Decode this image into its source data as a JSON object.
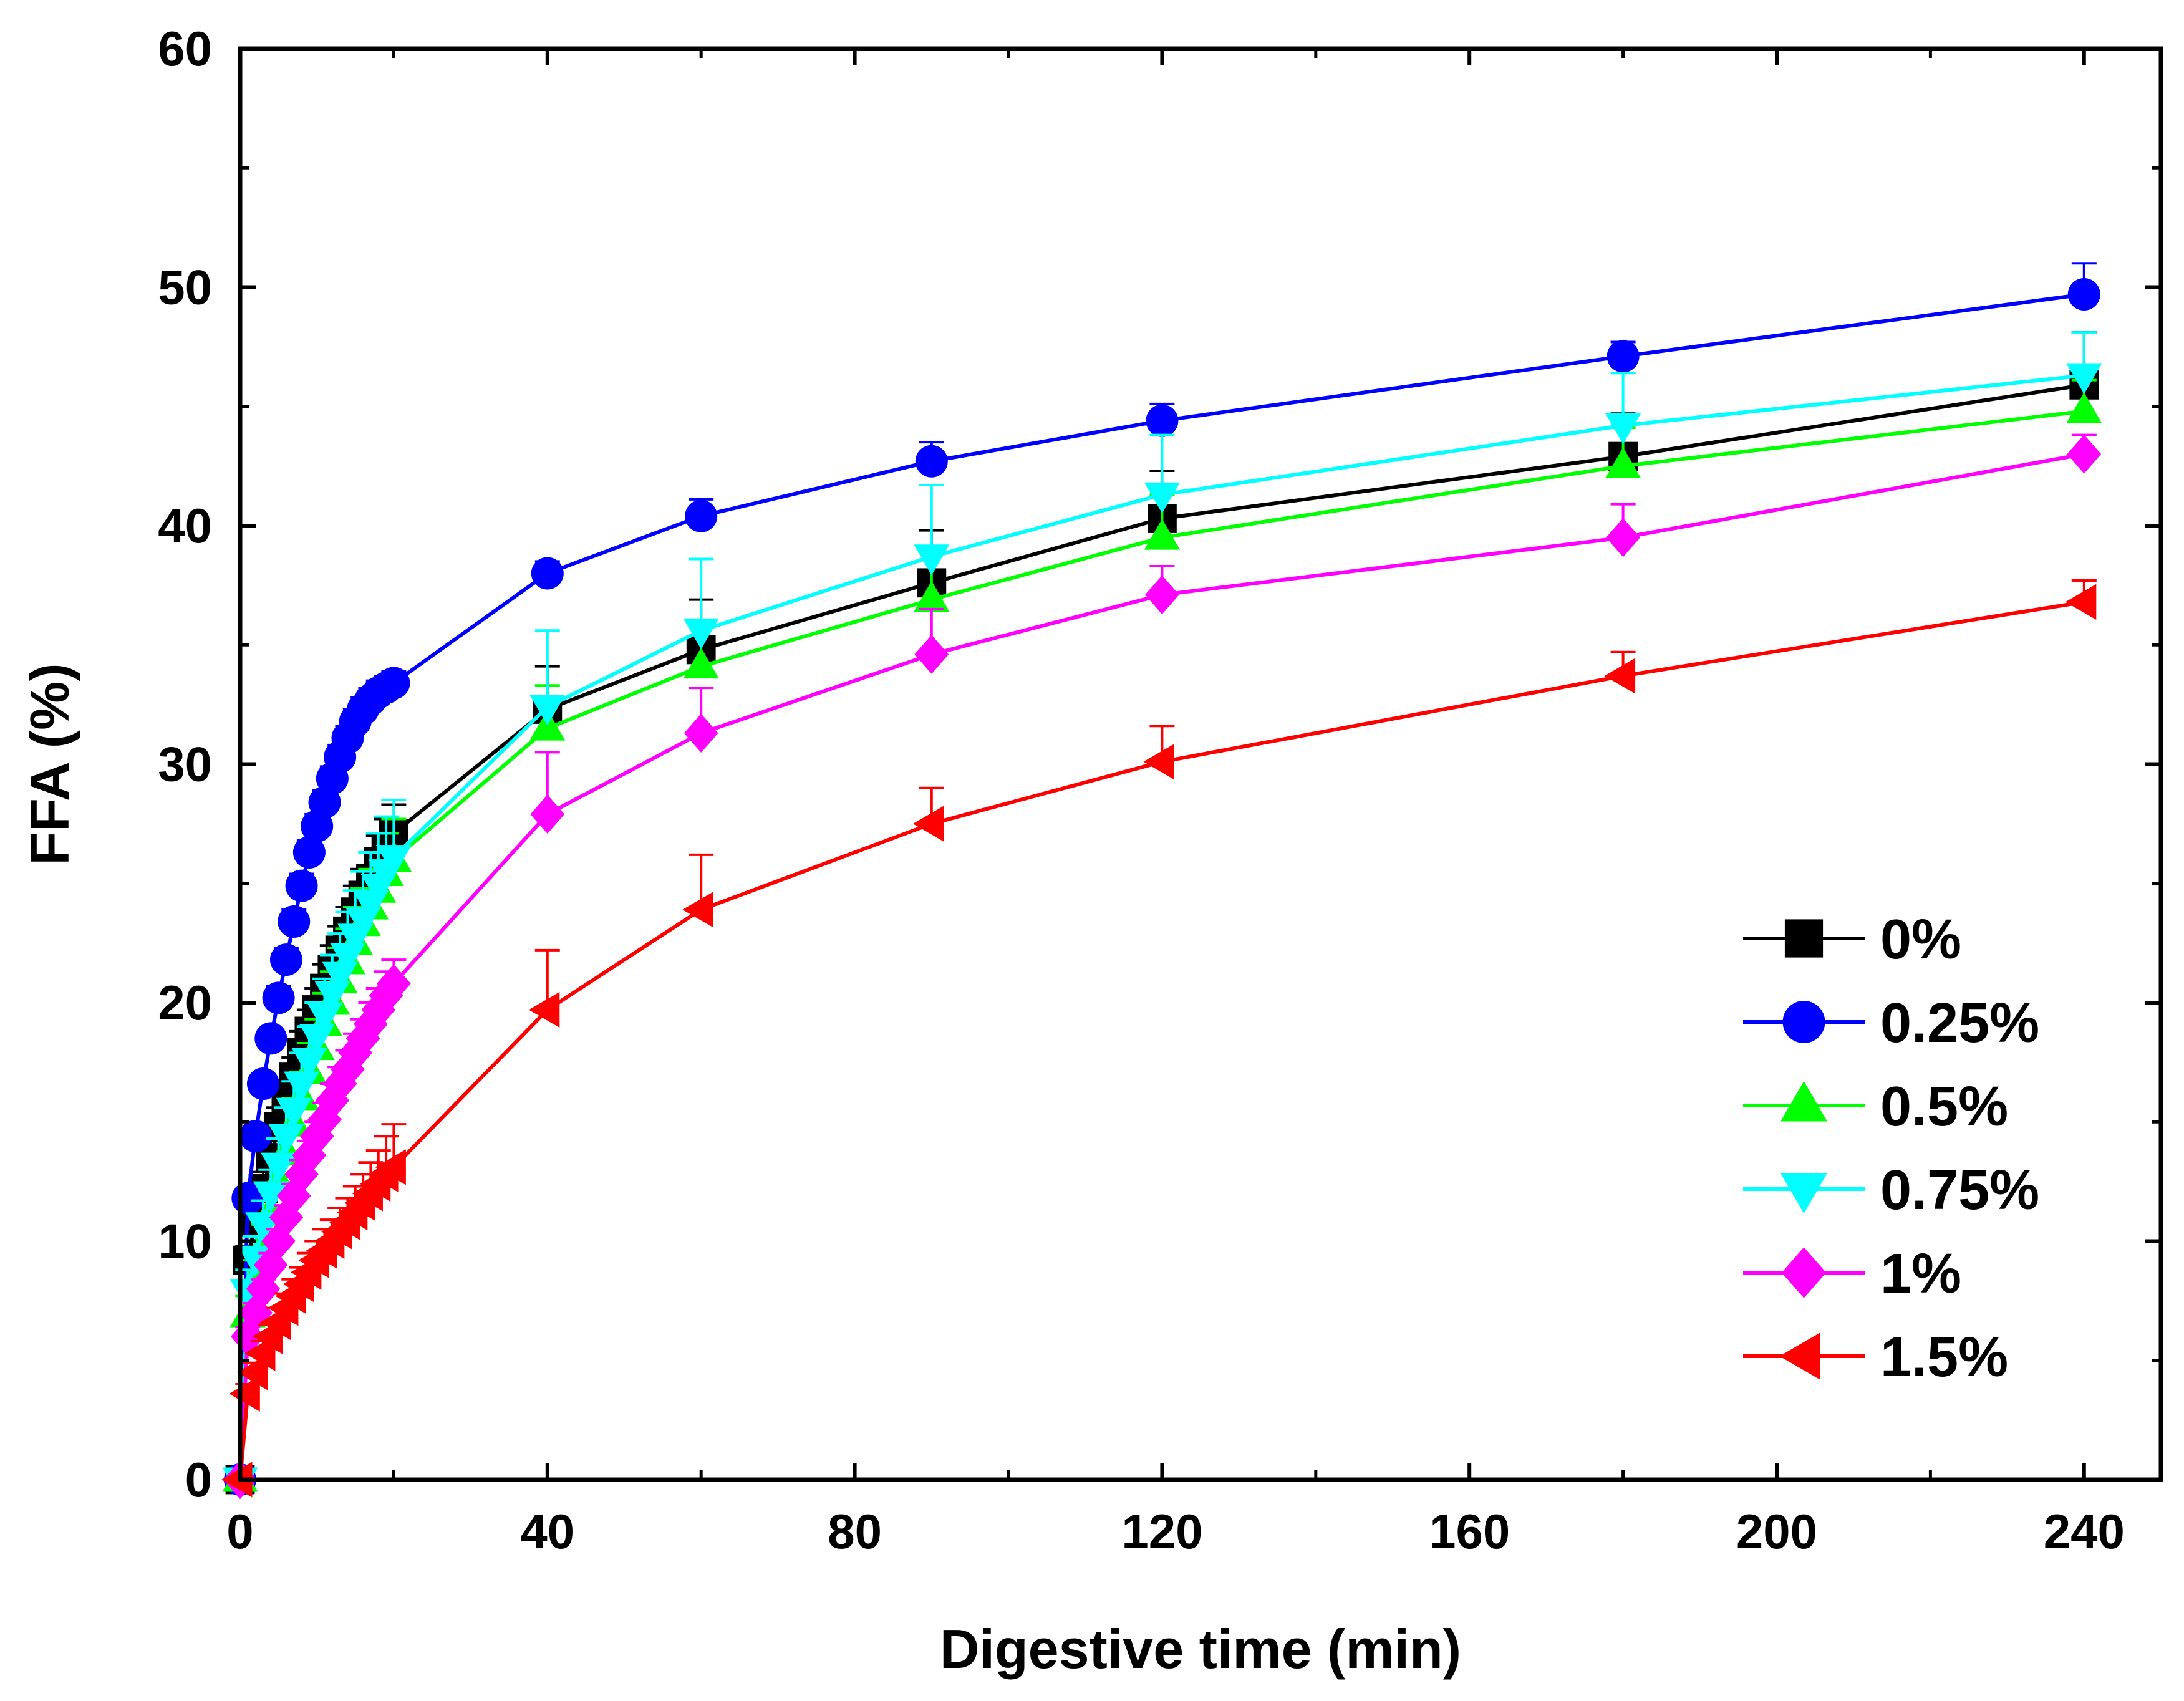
{
  "chart_data": {
    "type": "line",
    "title": "",
    "xlabel": "Digestive time (min)",
    "ylabel": "FFA (%)",
    "xlim": [
      0,
      250
    ],
    "ylim": [
      0,
      60
    ],
    "xticks": [
      0,
      40,
      80,
      120,
      160,
      200,
      240
    ],
    "yticks": [
      0,
      10,
      20,
      30,
      40,
      50,
      60
    ],
    "legend_position": "bottom-right",
    "x": [
      0,
      1,
      2,
      3,
      4,
      5,
      6,
      7,
      8,
      9,
      10,
      11,
      12,
      13,
      14,
      15,
      16,
      17,
      18,
      19,
      20,
      40,
      60,
      90,
      120,
      180,
      240
    ],
    "series": [
      {
        "name": "0%",
        "color": "#000000",
        "marker": "square",
        "values": [
          0,
          9.2,
          10.8,
          12.2,
          13.5,
          14.8,
          15.9,
          16.9,
          17.9,
          18.8,
          19.7,
          20.6,
          21.4,
          22.2,
          23.0,
          23.8,
          24.5,
          25.2,
          25.9,
          26.5,
          27.1,
          32.3,
          34.8,
          37.6,
          40.3,
          42.9,
          45.9
        ],
        "errors": [
          0,
          0.6,
          0.6,
          0.7,
          0.7,
          0.8,
          0.8,
          0.8,
          0.9,
          0.9,
          0.9,
          1.0,
          1.0,
          1.0,
          1.0,
          1.1,
          1.1,
          1.1,
          1.1,
          1.2,
          1.2,
          1.8,
          2.1,
          2.2,
          2.0,
          1.8,
          2.2
        ]
      },
      {
        "name": "0.25%",
        "color": "#0000ff",
        "marker": "circle",
        "values": [
          0,
          11.8,
          14.4,
          16.6,
          18.5,
          20.2,
          21.8,
          23.4,
          24.9,
          26.3,
          27.4,
          28.4,
          29.4,
          30.3,
          31.1,
          31.8,
          32.3,
          32.7,
          33.0,
          33.2,
          33.4,
          38.0,
          40.4,
          42.7,
          44.4,
          47.1,
          49.7
        ],
        "errors": [
          0,
          0.4,
          0.4,
          0.4,
          0.4,
          0.5,
          0.5,
          0.5,
          0.5,
          0.5,
          0.5,
          0.5,
          0.5,
          0.5,
          0.5,
          0.5,
          0.5,
          0.5,
          0.5,
          0.5,
          0.5,
          0.5,
          0.7,
          0.8,
          0.7,
          0.6,
          1.3
        ]
      },
      {
        "name": "0.5%",
        "color": "#00ff00",
        "marker": "triangle-up",
        "values": [
          0,
          6.9,
          8.4,
          9.8,
          11.2,
          12.5,
          13.7,
          14.9,
          16.0,
          17.1,
          18.1,
          19.1,
          20.0,
          20.9,
          21.7,
          22.5,
          23.3,
          24.0,
          24.7,
          25.4,
          26.0,
          31.5,
          34.1,
          36.9,
          39.5,
          42.5,
          44.8
        ],
        "errors": [
          0,
          0.8,
          0.8,
          0.9,
          0.9,
          1.0,
          1.0,
          1.1,
          1.1,
          1.2,
          1.2,
          1.3,
          1.3,
          1.4,
          1.4,
          1.5,
          1.5,
          1.6,
          1.6,
          1.7,
          1.7,
          1.8,
          1.9,
          2.0,
          1.8,
          1.6,
          1.3
        ]
      },
      {
        "name": "0.75%",
        "color": "#00ffff",
        "marker": "triangle-down",
        "values": [
          0,
          7.9,
          9.3,
          10.7,
          12.0,
          13.2,
          14.4,
          15.5,
          16.6,
          17.6,
          18.6,
          19.5,
          20.4,
          21.2,
          22.0,
          22.8,
          23.5,
          24.2,
          24.9,
          25.5,
          26.1,
          32.4,
          35.6,
          38.7,
          41.3,
          44.2,
          46.3
        ],
        "errors": [
          0,
          0.9,
          0.9,
          1.0,
          1.0,
          1.1,
          1.2,
          1.2,
          1.3,
          1.4,
          1.4,
          1.5,
          1.6,
          1.7,
          1.8,
          1.9,
          2.0,
          2.1,
          2.2,
          2.3,
          2.4,
          3.2,
          3.0,
          3.0,
          2.5,
          2.2,
          1.8
        ]
      },
      {
        "name": "1%",
        "color": "#ff00ff",
        "marker": "diamond",
        "values": [
          0,
          6.0,
          7.0,
          8.0,
          9.0,
          10.0,
          11.0,
          11.9,
          12.8,
          13.6,
          14.4,
          15.1,
          15.9,
          16.6,
          17.2,
          17.9,
          18.5,
          19.1,
          19.7,
          20.3,
          20.8,
          27.9,
          31.3,
          34.6,
          37.1,
          39.5,
          43.0
        ],
        "errors": [
          0,
          0.4,
          0.4,
          0.4,
          0.5,
          0.5,
          0.5,
          0.5,
          0.6,
          0.6,
          0.6,
          0.7,
          0.7,
          0.7,
          0.8,
          0.8,
          0.8,
          0.9,
          0.9,
          1.0,
          1.0,
          2.6,
          1.9,
          1.9,
          1.2,
          1.4,
          0.8
        ]
      },
      {
        "name": "1.5%",
        "color": "#ff0000",
        "marker": "triangle-left",
        "values": [
          0,
          3.6,
          4.5,
          5.3,
          6.0,
          6.6,
          7.2,
          7.7,
          8.2,
          8.7,
          9.2,
          9.6,
          10.0,
          10.4,
          10.8,
          11.2,
          11.6,
          12.0,
          12.4,
          12.8,
          13.1,
          19.7,
          23.9,
          27.5,
          30.1,
          33.7,
          36.8
        ],
        "errors": [
          0,
          0.4,
          0.4,
          0.5,
          0.5,
          0.6,
          0.6,
          0.7,
          0.7,
          0.8,
          0.8,
          0.9,
          0.9,
          1.0,
          1.0,
          1.1,
          1.2,
          1.3,
          1.4,
          1.6,
          1.8,
          2.5,
          2.3,
          1.5,
          1.5,
          1.0,
          0.9
        ]
      }
    ]
  }
}
